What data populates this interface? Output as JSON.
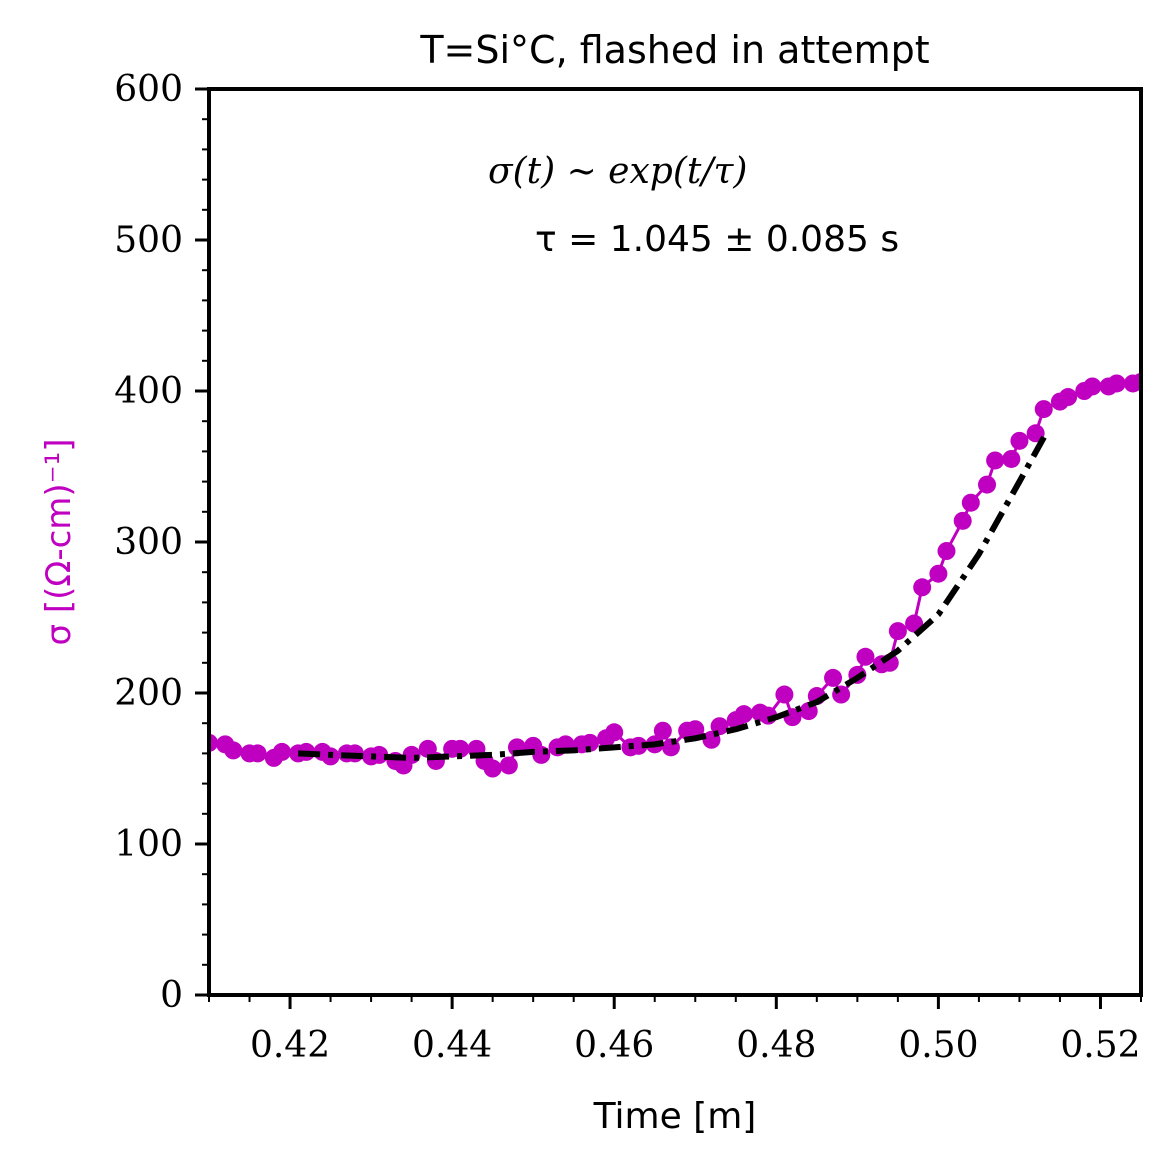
{
  "chart_data": {
    "type": "line",
    "title": "T=Si°C, flashed in attempt",
    "xlabel": "Time [m]",
    "ylabel": "σ [(Ω-cm)⁻¹]",
    "xlim": [
      0.41,
      0.525
    ],
    "ylim": [
      0,
      600
    ],
    "xticks": [
      0.42,
      0.44,
      0.46,
      0.48,
      0.5,
      0.52
    ],
    "xtick_labels": [
      "0.42",
      "0.44",
      "0.46",
      "0.48",
      "0.50",
      "0.52"
    ],
    "yticks": [
      0,
      100,
      200,
      300,
      400,
      500,
      600
    ],
    "ytick_labels": [
      "0",
      "100",
      "200",
      "300",
      "400",
      "500",
      "600"
    ],
    "grid": false,
    "colors": {
      "data": "#c000c0",
      "fit": "#000000"
    },
    "annotations": {
      "formula": "σ(t) ~ exp(t/τ)",
      "tau": "τ = 1.045 ± 0.085 s"
    },
    "series": [
      {
        "style": "marker-line",
        "x": [
          0.41,
          0.412,
          0.413,
          0.415,
          0.416,
          0.418,
          0.419,
          0.421,
          0.422,
          0.424,
          0.425,
          0.427,
          0.428,
          0.43,
          0.431,
          0.433,
          0.434,
          0.435,
          0.437,
          0.438,
          0.44,
          0.441,
          0.443,
          0.444,
          0.445,
          0.447,
          0.448,
          0.45,
          0.451,
          0.453,
          0.454,
          0.456,
          0.457,
          0.459,
          0.46,
          0.462,
          0.463,
          0.465,
          0.466,
          0.467,
          0.469,
          0.47,
          0.472,
          0.473,
          0.475,
          0.476,
          0.478,
          0.479,
          0.481,
          0.482,
          0.484,
          0.485,
          0.487,
          0.488,
          0.49,
          0.491,
          0.493,
          0.494,
          0.495,
          0.497,
          0.498,
          0.5,
          0.501,
          0.503,
          0.504,
          0.506,
          0.507,
          0.509,
          0.51,
          0.512,
          0.513,
          0.515,
          0.516,
          0.518,
          0.519,
          0.521,
          0.522,
          0.524,
          0.525
        ],
        "y": [
          167,
          166,
          162,
          160,
          160,
          157,
          161,
          160,
          161,
          161,
          158,
          160,
          160,
          158,
          159,
          155,
          152,
          159,
          163,
          155,
          163,
          163,
          163,
          155,
          150,
          152,
          164,
          165,
          159,
          164,
          166,
          166,
          167,
          170,
          174,
          164,
          165,
          166,
          175,
          164,
          175,
          176,
          169,
          178,
          182,
          186,
          187,
          185,
          199,
          184,
          188,
          198,
          210,
          199,
          212,
          224,
          219,
          220,
          241,
          246,
          270,
          279,
          294,
          314,
          326,
          338,
          354,
          355,
          367,
          372,
          388,
          393,
          396,
          400,
          403,
          403,
          405,
          405,
          406
        ]
      },
      {
        "style": "dash-dot",
        "x": [
          0.421,
          0.425,
          0.43,
          0.435,
          0.44,
          0.445,
          0.45,
          0.455,
          0.46,
          0.465,
          0.47,
          0.475,
          0.48,
          0.485,
          0.49,
          0.495,
          0.5,
          0.505,
          0.51,
          0.5135
        ],
        "y": [
          160,
          159,
          158,
          157,
          158,
          159,
          161,
          162,
          164,
          166,
          170,
          176,
          184,
          194,
          210,
          228,
          252,
          292,
          340,
          374
        ]
      }
    ]
  }
}
